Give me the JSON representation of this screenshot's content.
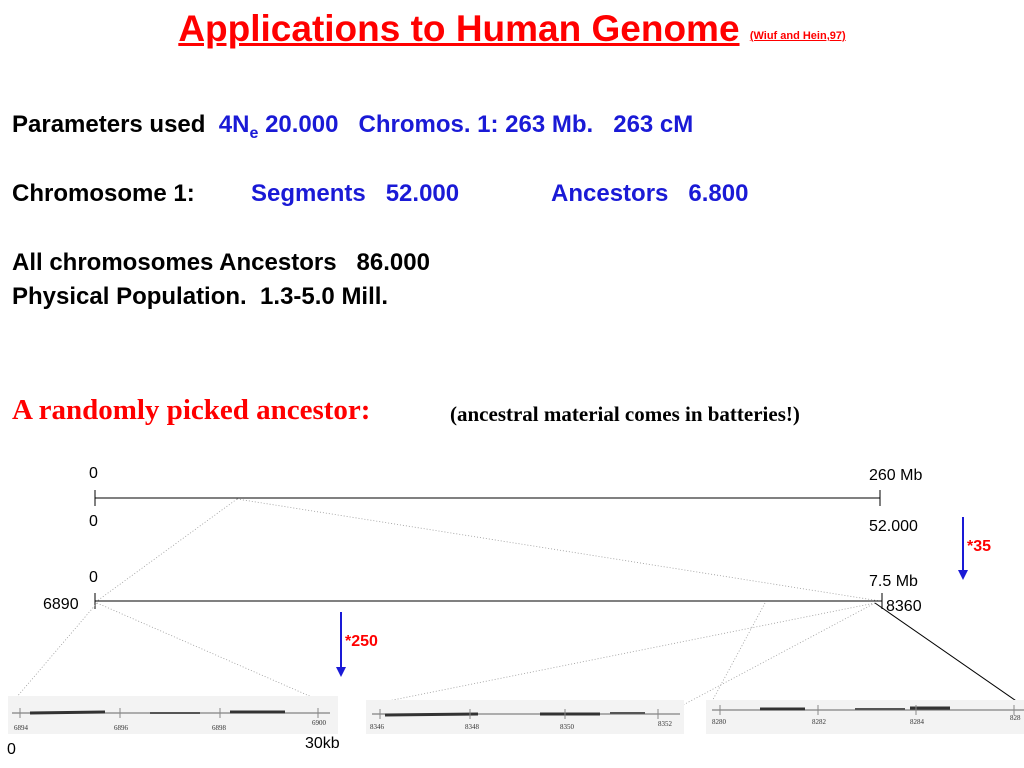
{
  "title": {
    "main": "Applications to Human Genome",
    "citation": "(Wiuf and Hein,97)"
  },
  "parameters": {
    "label": "Parameters used",
    "ne_base": "4N",
    "ne_sub": "e",
    "ne_value": "20.000",
    "chromos": "Chromos. 1: 263 Mb.",
    "cm": "263 cM"
  },
  "chromosome1": {
    "label": "Chromosome 1:",
    "segments": "Segments   52.000",
    "ancestors": "Ancestors   6.800"
  },
  "all_chromosomes": "All chromosomes Ancestors   86.000",
  "physical_population": "Physical Population.  1.3-5.0 Mill.",
  "ancestor_heading": {
    "main": "A randomly picked ancestor:",
    "note": "(ancestral material comes in batteries!)"
  },
  "diagram": {
    "top_start": "0",
    "top_end": "260 Mb",
    "seg_start": "0",
    "seg_end": "52.000",
    "zoom_factor": "*35",
    "mid_start": "0",
    "mid_end": "7.5 Mb",
    "mid_left_pos": "6890",
    "mid_right_pos": "8360",
    "zoom_factor2": "*250",
    "bottom_start": "0",
    "bottom_scale": "30kb",
    "strip1_ticks": [
      "6894",
      "6896",
      "6898",
      "6900"
    ],
    "strip2_ticks": [
      "8346",
      "8348",
      "8350",
      "8352"
    ],
    "strip3_ticks": [
      "8280",
      "8282",
      "8284",
      "828"
    ]
  }
}
